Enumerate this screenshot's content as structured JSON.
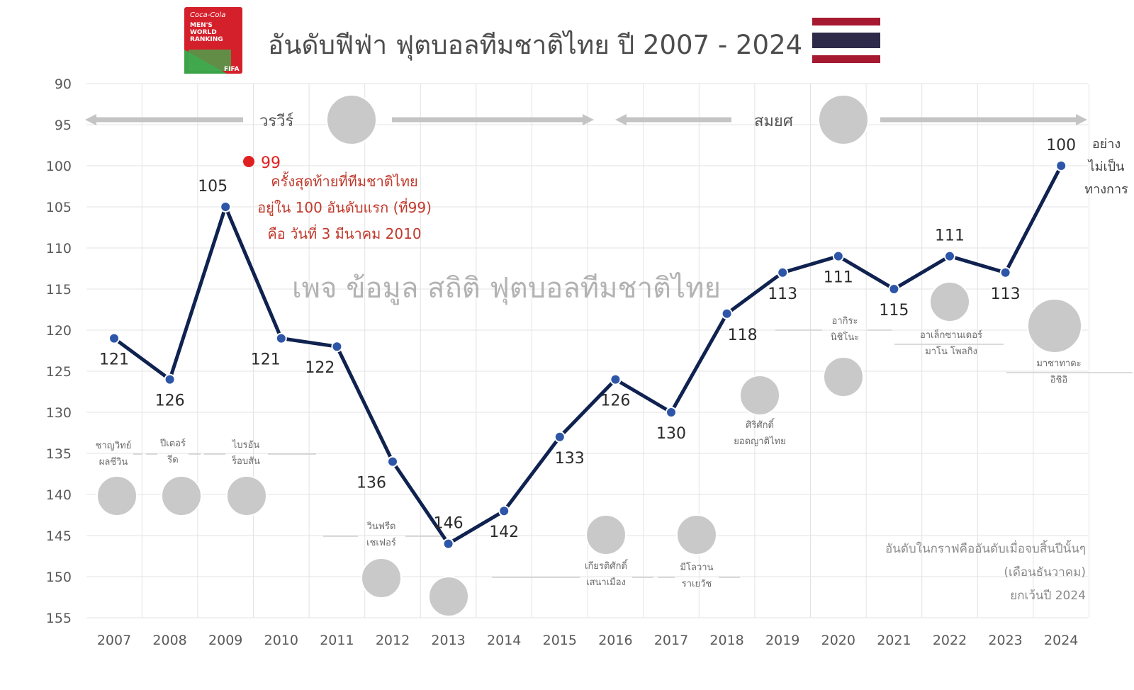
{
  "header": {
    "title": "อันดับฟีฟ่า ฟุตบอลทีมชาติไทย ปี 2007 - 2024",
    "logo_text": [
      "Coca-Cola",
      "MEN'S",
      "WORLD",
      "RANKING",
      "FIFA"
    ]
  },
  "colors": {
    "line": "#0f2250",
    "highlight": "#e02020",
    "note": "#c0392b",
    "flag_red": "#a51931",
    "flag_blue": "#2d2a4a"
  },
  "chart_data": {
    "type": "line",
    "title": "อันดับฟีฟ่า ฟุตบอลทีมชาติไทย ปี 2007 - 2024",
    "categories": [
      "2007",
      "2008",
      "2009",
      "2010",
      "2011",
      "2012",
      "2013",
      "2014",
      "2015",
      "2016",
      "2017",
      "2018",
      "2019",
      "2020",
      "2021",
      "2022",
      "2023",
      "2024"
    ],
    "series": [
      {
        "values": [
          121,
          126,
          105,
          121,
          122,
          136,
          146,
          142,
          133,
          126,
          130,
          118,
          113,
          111,
          115,
          111,
          113,
          100
        ]
      }
    ],
    "yticks": [
      90,
      95,
      100,
      105,
      110,
      115,
      120,
      125,
      130,
      135,
      140,
      145,
      150,
      155
    ],
    "ylim": [
      90,
      155
    ],
    "y_inverted": true,
    "grid": true
  },
  "highlight": {
    "rank": "99",
    "note_lines": [
      "ครั้งสุดท้ายที่ทีมชาติไทย",
      "อยู่ใน 100 อันดับแรก (ที่99)",
      "คือ วันที่ 3 มีนาคม 2010"
    ]
  },
  "unofficial_note": [
    "อย่าง",
    "ไม่เป็น",
    "ทางการ"
  ],
  "watermark": "เพจ ข้อมูล สถิติ ฟุตบอลทีมชาติไทย",
  "footnote": [
    "อันดับในกราฟคืออันดับเมื่อจบสิ้นปีนั้นๆ",
    "(เดือนธันวาคม)",
    "ยกเว้นปี 2024"
  ],
  "presidents": [
    {
      "name": "วรวีร์"
    },
    {
      "name": "สมยศ"
    }
  ],
  "coaches": [
    {
      "lines": [
        "ชาญวิทย์",
        "ผลชีวิน"
      ]
    },
    {
      "lines": [
        "ปีเตอร์",
        "รีด"
      ]
    },
    {
      "lines": [
        "ไบรอัน",
        "ร็อบสัน"
      ]
    },
    {
      "lines": [
        "วินฟรีด",
        "เชเฟอร์"
      ]
    },
    {
      "lines": [
        "เกียรติศักดิ์",
        "เสนาเมือง"
      ]
    },
    {
      "lines": [
        "มีโลวาน",
        "ราเยวัช"
      ]
    },
    {
      "lines": [
        "ศิริศักดิ์",
        "ยอดญาติไทย"
      ]
    },
    {
      "lines": [
        "อากิระ",
        "นิชิโนะ"
      ]
    },
    {
      "lines": [
        "อาเล็กซานเดอร์",
        "มาโน  โพลกิง"
      ]
    },
    {
      "lines": [
        "มาซาทาดะ",
        "อิชิอิ"
      ]
    }
  ]
}
